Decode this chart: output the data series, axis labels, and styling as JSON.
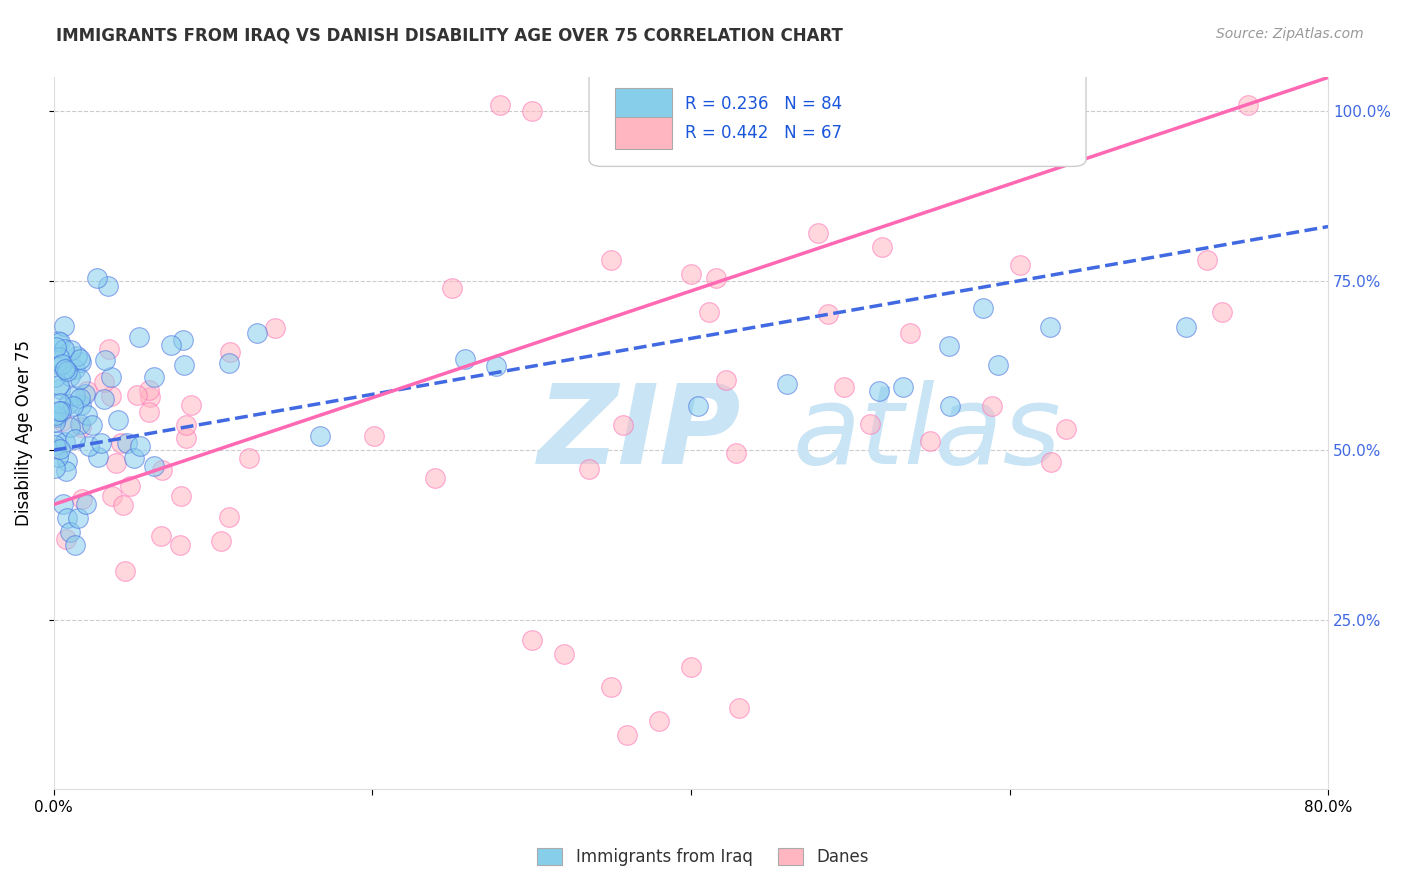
{
  "title": "IMMIGRANTS FROM IRAQ VS DANISH DISABILITY AGE OVER 75 CORRELATION CHART",
  "source": "Source: ZipAtlas.com",
  "ylabel": "Disability Age Over 75",
  "xlim": [
    0.0,
    0.8
  ],
  "ylim": [
    0.0,
    1.05
  ],
  "legend_label1": "Immigrants from Iraq",
  "legend_label2": "Danes",
  "color_iraq": "#87CEEB",
  "color_danes": "#FFB6C1",
  "color_iraq_line": "#4169E1",
  "color_danes_line": "#FF69B4",
  "watermark_zip": "ZIP",
  "watermark_atlas": "atlas",
  "watermark_color_zip": "#c8e4f5",
  "watermark_color_atlas": "#c8e4f5"
}
